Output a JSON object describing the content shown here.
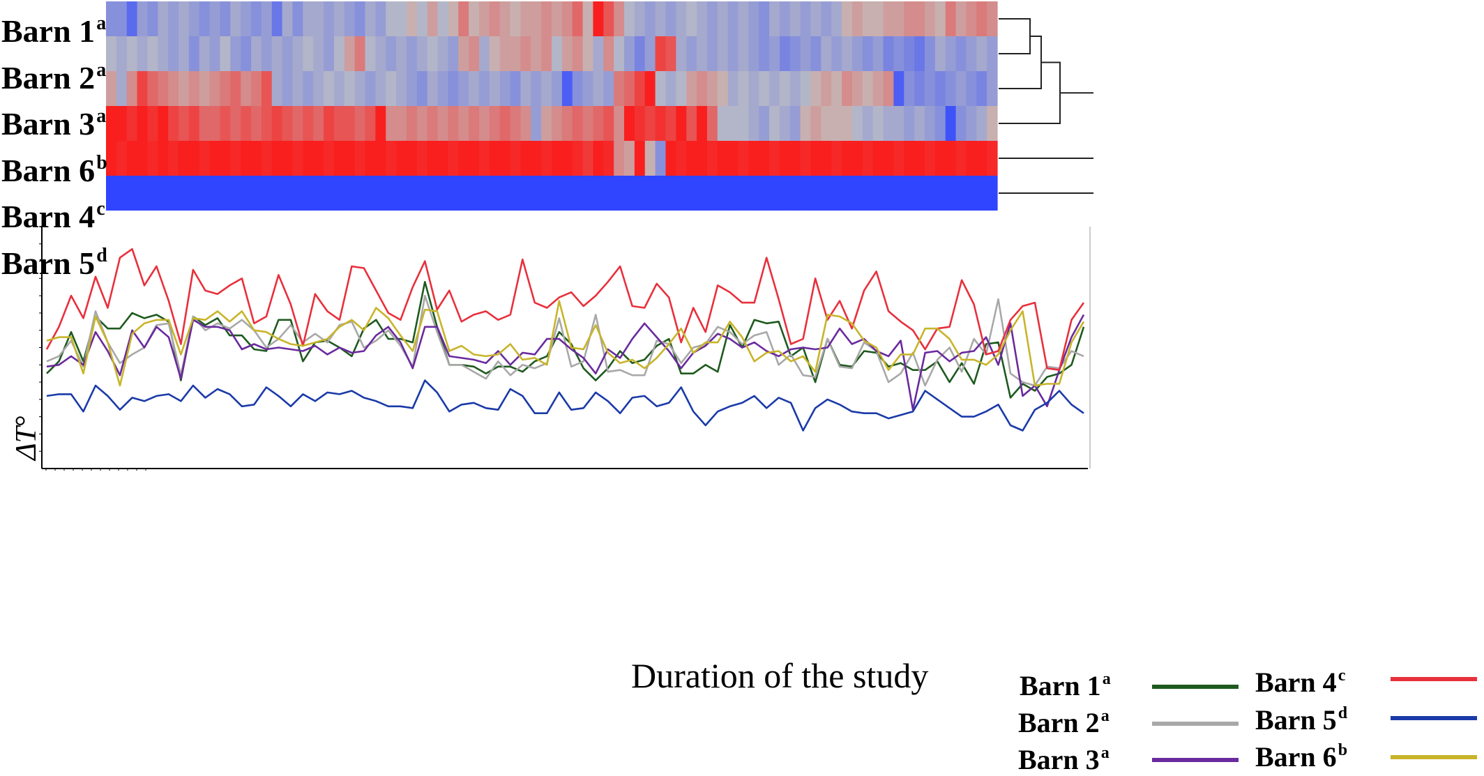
{
  "heatmap": {
    "rows": [
      {
        "name": "Barn 1",
        "sup": "a"
      },
      {
        "name": "Barn 2",
        "sup": "a"
      },
      {
        "name": "Barn 3",
        "sup": "a"
      },
      {
        "name": "Barn 6",
        "sup": "b"
      },
      {
        "name": "Barn 4",
        "sup": "c"
      },
      {
        "name": "Barn 5",
        "sup": "d"
      }
    ]
  },
  "chart_data": [
    {
      "type": "heatmap",
      "rows": [
        "Barn 1",
        "Barn 2",
        "Barn 3",
        "Barn 6",
        "Barn 4",
        "Barn 5"
      ],
      "columns": 86,
      "color_scale": {
        "low": "#2f45ff",
        "mid": "#c2c2c2",
        "high": "#ff0d0d"
      },
      "values": {
        "Barn 1": [
          -0.4,
          -0.4,
          -0.7,
          -0.3,
          -0.4,
          -0.2,
          -0.3,
          -0.2,
          -0.3,
          -0.4,
          -0.3,
          -0.4,
          -0.2,
          -0.3,
          -0.4,
          -0.3,
          -0.6,
          -0.2,
          -0.4,
          -0.2,
          -0.2,
          -0.3,
          -0.2,
          -0.3,
          -0.4,
          -0.2,
          -0.3,
          -0.1,
          -0.1,
          0.1,
          -0.1,
          0.2,
          -0.1,
          0.1,
          0.4,
          0.1,
          0.2,
          0.3,
          0.2,
          0.1,
          0.2,
          0.2,
          0.3,
          0.2,
          0.3,
          0.5,
          0.1,
          0.9,
          0.6,
          0.3,
          -0.1,
          -0.2,
          -0.3,
          -0.2,
          -0.3,
          -0.2,
          -0.1,
          -0.2,
          -0.3,
          -0.2,
          -0.3,
          -0.2,
          -0.3,
          -0.4,
          -0.2,
          -0.3,
          -0.2,
          -0.3,
          -0.2,
          -0.3,
          -0.2,
          0.1,
          0.2,
          0.1,
          0.1,
          0.2,
          0.2,
          0.3,
          0.3,
          0.2,
          0.1,
          0.4,
          0.2,
          0.3,
          0.4,
          0.3
        ],
        "Barn 2": [
          -0.1,
          -0.2,
          -0.1,
          -0.2,
          -0.1,
          -0.2,
          -0.3,
          -0.2,
          -0.4,
          -0.2,
          -0.3,
          -0.1,
          -0.3,
          -0.4,
          -0.2,
          -0.3,
          -0.2,
          -0.3,
          -0.2,
          -0.1,
          -0.2,
          -0.3,
          -0.1,
          0.2,
          0.4,
          -0.1,
          -0.2,
          -0.3,
          -0.2,
          -0.3,
          -0.2,
          -0.1,
          -0.2,
          -0.3,
          0.2,
          0.3,
          -0.2,
          0.1,
          0.2,
          0.2,
          0.3,
          0.2,
          0.3,
          -0.1,
          0.2,
          0.3,
          0.1,
          -0.2,
          0.3,
          -0.1,
          -0.3,
          -0.5,
          -0.3,
          0.7,
          0.6,
          -0.2,
          -0.3,
          -0.2,
          -0.3,
          -0.2,
          -0.3,
          -0.2,
          -0.3,
          -0.4,
          -0.3,
          -0.5,
          -0.4,
          -0.3,
          -0.4,
          -0.2,
          -0.3,
          -0.2,
          -0.3,
          -0.4,
          -0.3,
          -0.5,
          -0.4,
          -0.5,
          -0.6,
          -0.4,
          -0.2,
          -0.3,
          -0.4,
          -0.3,
          -0.2,
          -0.3
        ],
        "Barn 3": [
          0.2,
          -0.2,
          0.3,
          0.7,
          0.5,
          0.4,
          0.3,
          0.2,
          0.3,
          0.2,
          0.3,
          0.4,
          0.5,
          0.3,
          0.4,
          0.6,
          -0.2,
          -0.3,
          -0.2,
          -0.3,
          -0.2,
          -0.1,
          -0.2,
          -0.1,
          -0.2,
          -0.3,
          -0.2,
          -0.1,
          -0.2,
          -0.3,
          -0.4,
          -0.2,
          -0.3,
          -0.4,
          -0.3,
          -0.2,
          -0.3,
          -0.2,
          -0.3,
          -0.4,
          -0.2,
          -0.3,
          -0.2,
          -0.3,
          -0.8,
          -0.4,
          -0.3,
          -0.2,
          -0.3,
          0.4,
          0.5,
          0.7,
          0.9,
          -0.1,
          -0.2,
          -0.1,
          0.2,
          0.3,
          0.2,
          0.1,
          -0.2,
          -0.1,
          -0.2,
          -0.1,
          -0.2,
          -0.1,
          -0.2,
          -0.1,
          0.1,
          0.2,
          0.1,
          0.3,
          0.2,
          0.1,
          0.2,
          0.3,
          -0.8,
          -0.4,
          -0.5,
          -0.4,
          -0.5,
          -0.4,
          -0.3,
          -0.4,
          -0.5,
          -0.3
        ],
        "Barn 6": [
          0.9,
          0.9,
          0.8,
          0.9,
          0.8,
          0.9,
          0.7,
          0.6,
          0.7,
          0.5,
          0.5,
          0.6,
          0.5,
          0.6,
          0.5,
          0.6,
          0.7,
          0.6,
          0.5,
          0.6,
          0.5,
          0.7,
          0.6,
          0.6,
          0.5,
          0.6,
          0.9,
          0.3,
          0.3,
          0.4,
          0.3,
          0.4,
          0.3,
          0.4,
          0.3,
          0.4,
          0.3,
          0.4,
          0.5,
          0.4,
          0.3,
          -0.3,
          0.2,
          0.3,
          0.4,
          0.5,
          0.4,
          0.5,
          0.6,
          0.3,
          0.9,
          0.8,
          0.7,
          0.8,
          0.7,
          0.9,
          0.6,
          0.9,
          0.5,
          -0.1,
          -0.1,
          -0.1,
          -0.2,
          -0.3,
          -0.1,
          -0.2,
          -0.3,
          0.1,
          0.2,
          0.1,
          0.1,
          0.1,
          -0.1,
          -0.2,
          -0.1,
          -0.2,
          -0.2,
          -0.3,
          -0.2,
          -0.3,
          -0.4,
          -0.9,
          -0.4,
          -0.3,
          -0.2,
          0.1
        ],
        "Barn 4": [
          0.9,
          0.85,
          0.9,
          0.9,
          0.85,
          0.9,
          0.85,
          0.9,
          0.9,
          0.85,
          0.9,
          0.9,
          0.85,
          0.9,
          0.9,
          0.85,
          0.9,
          0.9,
          0.85,
          0.9,
          0.9,
          0.85,
          0.9,
          0.9,
          0.85,
          0.9,
          0.9,
          0.85,
          0.9,
          0.9,
          0.85,
          0.9,
          0.9,
          0.85,
          0.9,
          0.9,
          0.85,
          0.9,
          0.9,
          0.85,
          0.9,
          0.9,
          0.85,
          0.9,
          0.9,
          0.85,
          0.75,
          0.9,
          0.85,
          0.3,
          0.2,
          0.9,
          0.1,
          -0.4,
          0.9,
          0.85,
          0.9,
          0.9,
          0.85,
          0.9,
          0.9,
          0.85,
          0.9,
          0.9,
          0.85,
          0.9,
          0.9,
          0.85,
          0.9,
          0.9,
          0.85,
          0.9,
          0.9,
          0.85,
          0.9,
          0.9,
          0.85,
          0.9,
          0.9,
          0.85,
          0.9,
          0.9,
          0.85,
          0.9,
          0.9,
          0.85
        ],
        "Barn 5": [
          -1,
          -1,
          -1,
          -1,
          -1,
          -1,
          -1,
          -1,
          -1,
          -1,
          -1,
          -1,
          -1,
          -1,
          -1,
          -1,
          -1,
          -1,
          -1,
          -1,
          -1,
          -1,
          -1,
          -1,
          -1,
          -1,
          -1,
          -1,
          -1,
          -1,
          -1,
          -1,
          -1,
          -1,
          -1,
          -1,
          -1,
          -1,
          -1,
          -1,
          -1,
          -1,
          -1,
          -1,
          -1,
          -1,
          -1,
          -1,
          -1,
          -1,
          -1,
          -1,
          -1,
          -1,
          -1,
          -1,
          -1,
          -1,
          -1,
          -1,
          -1,
          -1,
          -1,
          -1,
          -1,
          -1,
          -1,
          -1,
          -1,
          -1,
          -1,
          -1,
          -1,
          -1,
          -1,
          -1,
          -1,
          -1,
          -1,
          -1,
          -1,
          -1,
          -1,
          -1,
          -1,
          -1
        ]
      },
      "dendrogram": "Barn 1 + Barn 2, then + Barn 3, then + Barn 6; Barn 4 and Barn 5 separate"
    },
    {
      "type": "line",
      "xlabel": "Duration of the study",
      "ylabel": "ΔT°",
      "ylim": [
        0,
        14
      ],
      "grid": false,
      "legend_position": "bottom-right",
      "series": [
        {
          "name": "Barn 1",
          "sup": "a",
          "color": "#1e5a1e",
          "values": [
            5.5,
            6.2,
            7.9,
            6.2,
            8.8,
            8.1,
            8.1,
            9.0,
            8.7,
            8.9,
            8.5,
            5.1,
            8.8,
            8.3,
            8.7,
            7.7,
            7.7,
            6.9,
            6.8,
            8.6,
            8.6,
            6.2,
            7.3,
            7.4,
            7.0,
            6.5,
            8.1,
            8.6,
            7.5,
            7.5,
            7.3,
            10.8,
            8.2,
            6.0,
            6.0,
            5.9,
            5.5,
            5.9,
            5.9,
            5.6,
            6.2,
            6.5,
            7.9,
            7.2,
            5.8,
            5.1,
            5.8,
            6.8,
            6.1,
            6.3,
            7.1,
            7.5,
            5.5,
            5.5,
            6.0,
            5.6,
            8.3,
            7.0,
            8.6,
            8.4,
            8.5,
            6.5,
            7.0,
            5.0,
            7.5,
            6.0,
            5.9,
            6.8,
            6.7,
            5.9,
            6.1,
            5.7,
            5.7,
            6.2,
            5.0,
            6.1,
            4.9,
            7.2,
            7.3,
            4.1,
            4.9,
            4.5,
            5.3,
            5.5,
            6.0,
            8.2
          ]
        },
        {
          "name": "Barn 2",
          "sup": "a",
          "color": "#a8a8a8",
          "values": [
            6.2,
            6.5,
            7.4,
            5.9,
            9.1,
            7.3,
            6.1,
            6.6,
            7.0,
            8.3,
            8.4,
            5.4,
            8.8,
            8.0,
            8.4,
            8.1,
            8.6,
            8.0,
            7.0,
            7.5,
            8.3,
            7.3,
            7.8,
            7.3,
            8.3,
            8.5,
            7.0,
            7.4,
            8.0,
            7.1,
            5.9,
            10.0,
            7.9,
            6.0,
            6.0,
            5.6,
            5.2,
            6.2,
            5.4,
            6.0,
            5.8,
            6.1,
            8.7,
            5.9,
            6.2,
            8.9,
            5.6,
            5.7,
            5.4,
            5.4,
            7.4,
            7.2,
            6.1,
            7.0,
            7.2,
            8.2,
            7.9,
            7.2,
            7.7,
            7.9,
            6.0,
            6.6,
            5.4,
            5.3,
            7.5,
            5.9,
            5.8,
            7.3,
            6.8,
            5.0,
            5.5,
            6.7,
            4.8,
            6.3,
            7.0,
            5.6,
            7.5,
            6.6,
            9.8,
            5.5,
            5.0,
            4.8,
            5.9,
            5.8,
            6.8,
            6.5
          ]
        },
        {
          "name": "Barn 3",
          "sup": "a",
          "color": "#6a2a9e",
          "values": [
            5.9,
            6.0,
            6.5,
            6.0,
            7.9,
            6.8,
            5.4,
            8.0,
            7.0,
            8.2,
            7.6,
            5.2,
            8.6,
            8.2,
            8.2,
            8.0,
            6.9,
            7.2,
            6.9,
            7.0,
            6.9,
            6.8,
            7.1,
            6.6,
            7.0,
            6.7,
            6.8,
            7.7,
            8.2,
            7.3,
            5.8,
            8.2,
            8.2,
            6.5,
            6.4,
            6.3,
            6.1,
            6.8,
            6.0,
            6.7,
            6.6,
            7.5,
            7.5,
            6.9,
            6.4,
            5.5,
            6.9,
            6.4,
            7.5,
            8.4,
            7.6,
            6.8,
            5.8,
            6.7,
            7.1,
            7.8,
            7.5,
            7.0,
            7.3,
            6.8,
            6.5,
            6.9,
            7.0,
            6.9,
            7.0,
            8.1,
            7.2,
            7.5,
            6.8,
            6.5,
            7.4,
            3.4,
            6.7,
            6.8,
            6.2,
            6.7,
            6.8,
            7.6,
            6.0,
            8.4,
            4.2,
            4.8,
            3.6,
            5.7,
            7.6,
            8.9
          ]
        },
        {
          "name": "Barn 4",
          "sup": "c",
          "color": "#e8303c",
          "values": [
            6.9,
            8.2,
            10.0,
            8.7,
            11.1,
            9.3,
            12.2,
            12.7,
            10.6,
            11.7,
            9.7,
            7.2,
            11.5,
            10.3,
            10.1,
            10.6,
            11.0,
            8.4,
            8.8,
            11.2,
            9.5,
            7.1,
            10.1,
            9.1,
            8.6,
            11.7,
            11.6,
            10.3,
            9.0,
            8.6,
            10.5,
            12.0,
            9.2,
            10.3,
            8.5,
            8.9,
            9.1,
            8.6,
            8.9,
            12.1,
            9.6,
            9.3,
            9.9,
            10.2,
            9.4,
            10.0,
            10.8,
            11.7,
            9.4,
            9.3,
            10.7,
            9.9,
            7.3,
            9.3,
            7.9,
            10.6,
            10.2,
            9.6,
            9.6,
            12.2,
            9.8,
            7.2,
            7.5,
            11.0,
            8.6,
            9.7,
            8.1,
            10.3,
            11.4,
            9.1,
            8.5,
            8.0,
            6.9,
            8.1,
            8.2,
            10.9,
            9.5,
            6.6,
            6.8,
            8.6,
            9.4,
            9.6,
            5.8,
            5.7,
            8.6,
            9.6
          ]
        },
        {
          "name": "Barn 5",
          "sup": "d",
          "color": "#1a3aa8",
          "values": [
            4.2,
            4.3,
            4.3,
            3.3,
            4.8,
            4.2,
            3.4,
            4.1,
            3.9,
            4.2,
            4.3,
            3.9,
            4.8,
            4.1,
            4.6,
            4.3,
            3.6,
            3.7,
            4.7,
            4.2,
            3.6,
            4.3,
            3.9,
            4.4,
            4.3,
            4.5,
            4.1,
            3.9,
            3.6,
            3.6,
            3.5,
            5.1,
            4.4,
            3.3,
            3.7,
            3.8,
            3.5,
            3.4,
            4.6,
            4.2,
            3.2,
            3.2,
            4.4,
            3.4,
            3.5,
            4.4,
            3.9,
            3.2,
            4.1,
            4.2,
            3.6,
            3.8,
            4.7,
            3.3,
            2.5,
            3.3,
            3.6,
            3.8,
            4.2,
            3.5,
            4.1,
            3.8,
            2.2,
            3.5,
            4.0,
            3.7,
            3.3,
            3.2,
            3.2,
            2.9,
            3.1,
            3.3,
            4.5,
            4.0,
            3.5,
            3.0,
            3.0,
            3.3,
            3.7,
            2.5,
            2.2,
            3.4,
            3.8,
            4.5,
            3.7,
            3.2
          ]
        },
        {
          "name": "Barn 6",
          "sup": "b",
          "color": "#c8b42a",
          "values": [
            7.4,
            7.6,
            7.6,
            5.5,
            8.8,
            7.3,
            4.8,
            7.8,
            8.4,
            8.6,
            8.6,
            6.6,
            8.7,
            8.6,
            9.1,
            8.5,
            9.1,
            8.0,
            7.9,
            7.5,
            7.2,
            7.1,
            7.3,
            7.5,
            8.2,
            8.6,
            8.0,
            9.3,
            8.7,
            7.7,
            6.8,
            9.2,
            9.1,
            6.8,
            7.1,
            6.6,
            6.5,
            6.6,
            7.2,
            6.3,
            6.4,
            6.0,
            9.7,
            7.0,
            6.9,
            8.3,
            6.7,
            6.1,
            6.3,
            5.8,
            6.4,
            7.2,
            8.1,
            6.7,
            7.3,
            7.3,
            8.5,
            7.6,
            6.2,
            6.7,
            6.8,
            6.2,
            6.5,
            5.6,
            8.9,
            8.8,
            8.4,
            7.4,
            7.0,
            5.7,
            6.6,
            6.6,
            8.1,
            8.1,
            7.5,
            6.3,
            6.3,
            6.0,
            6.6,
            8.0,
            9.1,
            4.8,
            4.9,
            4.9,
            7.3,
            8.5
          ]
        }
      ]
    }
  ],
  "axis": {
    "xlabel": "Duration of the study",
    "ylabel_main": "ΔT",
    "ylabel_suffix": "°"
  }
}
